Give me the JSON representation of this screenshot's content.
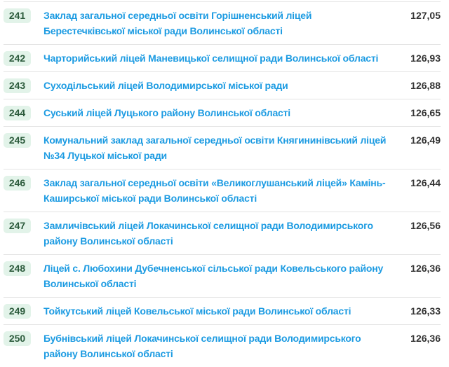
{
  "colors": {
    "link": "#1c9be2",
    "badge_bg": "#e2f3e9",
    "badge_text": "#2c5b3c",
    "score": "#333333"
  },
  "rows": [
    {
      "rank": "241",
      "name": "Заклад загальної середньої освіти Горішненський ліцей Берестечківської міської ради Волинської області",
      "score": "127,05"
    },
    {
      "rank": "242",
      "name": "Чарторийський ліцей Маневицької селищної ради Волинської області",
      "score": "126,93"
    },
    {
      "rank": "243",
      "name": "Суходільський ліцей Володимирської міської ради",
      "score": "126,88"
    },
    {
      "rank": "244",
      "name": "Суський ліцей Луцького району Волинської області",
      "score": "126,65"
    },
    {
      "rank": "245",
      "name": "Комунальний заклад загальної середньої освіти Княгининівський ліцей №34 Луцької міської ради",
      "score": "126,49"
    },
    {
      "rank": "246",
      "name": "Заклад загальної середньої освіти «Великоглушанський ліцей» Камінь-Каширської міської ради Волинської області",
      "score": "126,44"
    },
    {
      "rank": "247",
      "name": "Замличівський ліцей Локачинської селищної ради Володимирського району Волинської області",
      "score": "126,56"
    },
    {
      "rank": "248",
      "name": "Ліцей с. Любохини Дубечненської сільської ради Ковельського району Волинської області",
      "score": "126,36"
    },
    {
      "rank": "249",
      "name": "Тойкутський ліцей Ковельської міської ради Волинської області",
      "score": "126,33"
    },
    {
      "rank": "250",
      "name": "Бубнівський ліцей Локачинської селищної ради Володимирського району Волинської області",
      "score": "126,36"
    }
  ]
}
